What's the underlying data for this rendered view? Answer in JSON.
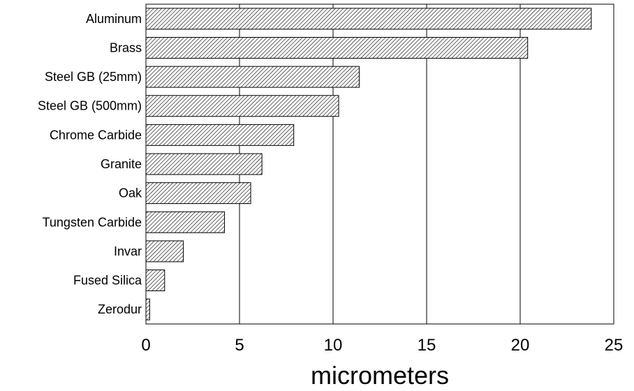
{
  "chart_data": {
    "type": "bar",
    "orientation": "horizontal",
    "categories": [
      "Aluminum",
      "Brass",
      "Steel GB (25mm)",
      "Steel GB (500mm)",
      "Chrome Carbide",
      "Granite",
      "Oak",
      "Tungsten Carbide",
      "Invar",
      "Fused Silica",
      "Zerodur"
    ],
    "values": [
      23.8,
      20.4,
      11.4,
      10.3,
      7.9,
      6.2,
      5.6,
      4.2,
      2.0,
      1.0,
      0.2
    ],
    "xlabel": "micrometers",
    "ylabel": "",
    "title": "",
    "xlim": [
      0,
      25
    ],
    "xticks": [
      "0",
      "5",
      "10",
      "15",
      "20",
      "25"
    ],
    "grid": "vertical",
    "bar_fill": "diagonal hatch",
    "colors": {
      "bar_stroke": "#000000",
      "hatch": "#000000",
      "background": "#ffffff"
    }
  }
}
